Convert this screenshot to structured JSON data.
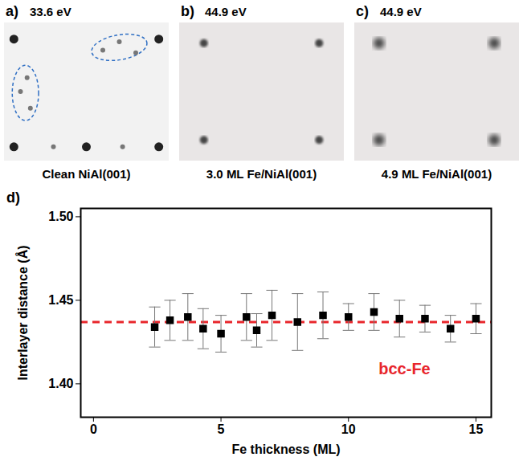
{
  "panels": [
    {
      "letter": "a)",
      "energy": "33.6 eV",
      "caption": "Clean NiAl(001)"
    },
    {
      "letter": "b)",
      "energy": "44.9 eV",
      "caption": "3.0 ML Fe/NiAl(001)"
    },
    {
      "letter": "c)",
      "energy": "44.9 eV",
      "caption": "4.9 ML Fe/NiAl(001)"
    }
  ],
  "chart_data": {
    "type": "scatter",
    "panel_label": "d)",
    "x_label": "Fe thickness (ML)",
    "y_label": "Interlayer distance (Å)",
    "x": [
      2.4,
      3.0,
      3.7,
      4.3,
      5.0,
      6.0,
      6.4,
      7.0,
      8.0,
      9.0,
      10.0,
      11.0,
      12.0,
      13.0,
      14.0,
      15.0
    ],
    "values": [
      1.434,
      1.438,
      1.44,
      1.433,
      1.43,
      1.44,
      1.432,
      1.441,
      1.437,
      1.441,
      1.44,
      1.443,
      1.439,
      1.439,
      1.433,
      1.439
    ],
    "errors": [
      0.012,
      0.012,
      0.014,
      0.012,
      0.011,
      0.014,
      0.01,
      0.015,
      0.017,
      0.014,
      0.008,
      0.011,
      0.011,
      0.008,
      0.008,
      0.009
    ],
    "color": "#000000",
    "marker": "square",
    "reference_lines": [
      {
        "name": "bcc-Fe",
        "value": 1.437,
        "color": "#e8262c",
        "line_style": "dashed"
      }
    ],
    "xlim": [
      -0.5,
      15.6
    ],
    "xticks": [
      0,
      5,
      10,
      15
    ],
    "ylim": [
      1.38,
      1.505
    ],
    "yticks": [
      {
        "value": 1.4,
        "label": "1.40"
      },
      {
        "value": 1.45,
        "label": "1.45"
      },
      {
        "value": 1.5,
        "label": "1.50"
      }
    ],
    "grid": false
  }
}
